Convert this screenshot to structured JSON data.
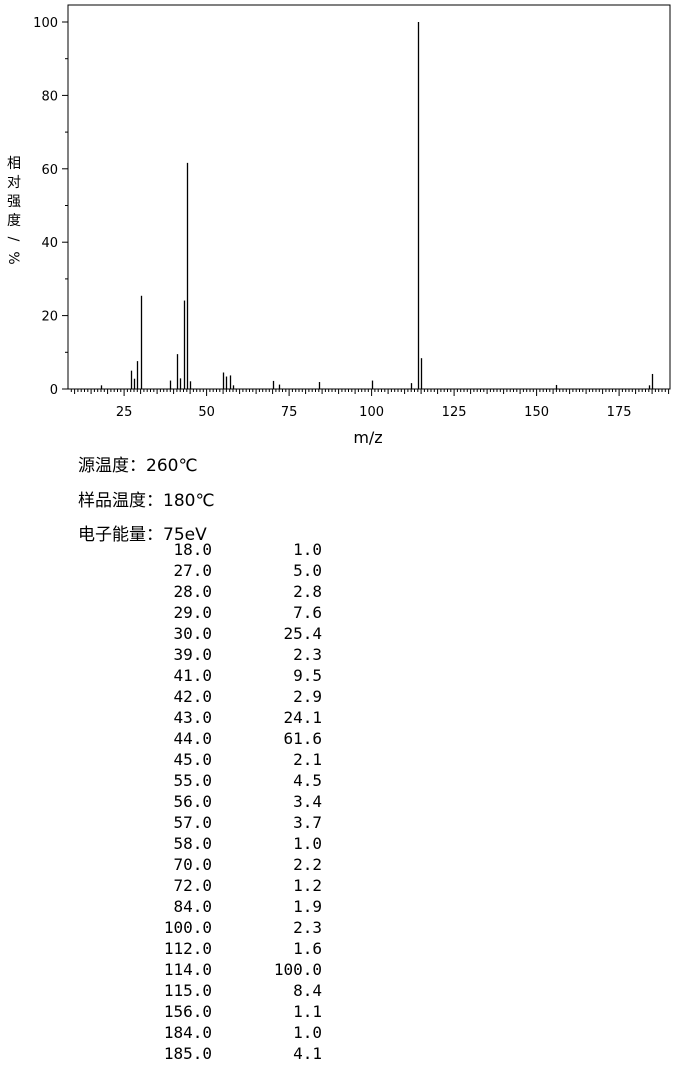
{
  "chart_data": {
    "type": "bar",
    "xlabel": "m/z",
    "ylabel": "相对强度/%",
    "xlim": [
      9,
      190
    ],
    "ylim": [
      0,
      100
    ],
    "x_ticks": [
      25,
      50,
      75,
      100,
      125,
      150,
      175
    ],
    "y_ticks": [
      0,
      20,
      40,
      60,
      80,
      100
    ],
    "grid": false,
    "peaks": [
      {
        "mz": 18.0,
        "intensity": 1.0
      },
      {
        "mz": 27.0,
        "intensity": 5.0
      },
      {
        "mz": 28.0,
        "intensity": 2.8
      },
      {
        "mz": 29.0,
        "intensity": 7.6
      },
      {
        "mz": 30.0,
        "intensity": 25.4
      },
      {
        "mz": 39.0,
        "intensity": 2.3
      },
      {
        "mz": 41.0,
        "intensity": 9.5
      },
      {
        "mz": 42.0,
        "intensity": 2.9
      },
      {
        "mz": 43.0,
        "intensity": 24.1
      },
      {
        "mz": 44.0,
        "intensity": 61.6
      },
      {
        "mz": 45.0,
        "intensity": 2.1
      },
      {
        "mz": 55.0,
        "intensity": 4.5
      },
      {
        "mz": 56.0,
        "intensity": 3.4
      },
      {
        "mz": 57.0,
        "intensity": 3.7
      },
      {
        "mz": 58.0,
        "intensity": 1.0
      },
      {
        "mz": 70.0,
        "intensity": 2.2
      },
      {
        "mz": 72.0,
        "intensity": 1.2
      },
      {
        "mz": 84.0,
        "intensity": 1.9
      },
      {
        "mz": 100.0,
        "intensity": 2.3
      },
      {
        "mz": 112.0,
        "intensity": 1.6
      },
      {
        "mz": 114.0,
        "intensity": 100.0
      },
      {
        "mz": 115.0,
        "intensity": 8.4
      },
      {
        "mz": 156.0,
        "intensity": 1.1
      },
      {
        "mz": 184.0,
        "intensity": 1.0
      },
      {
        "mz": 185.0,
        "intensity": 4.1
      }
    ]
  },
  "info": {
    "source_temp": "源温度：260℃",
    "sample_temp": "样品温度：180℃",
    "electron_energy": "电子能量：75eV"
  },
  "table": [
    {
      "mz": "18.0",
      "intensity": "1.0"
    },
    {
      "mz": "27.0",
      "intensity": "5.0"
    },
    {
      "mz": "28.0",
      "intensity": "2.8"
    },
    {
      "mz": "29.0",
      "intensity": "7.6"
    },
    {
      "mz": "30.0",
      "intensity": "25.4"
    },
    {
      "mz": "39.0",
      "intensity": "2.3"
    },
    {
      "mz": "41.0",
      "intensity": "9.5"
    },
    {
      "mz": "42.0",
      "intensity": "2.9"
    },
    {
      "mz": "43.0",
      "intensity": "24.1"
    },
    {
      "mz": "44.0",
      "intensity": "61.6"
    },
    {
      "mz": "45.0",
      "intensity": "2.1"
    },
    {
      "mz": "55.0",
      "intensity": "4.5"
    },
    {
      "mz": "56.0",
      "intensity": "3.4"
    },
    {
      "mz": "57.0",
      "intensity": "3.7"
    },
    {
      "mz": "58.0",
      "intensity": "1.0"
    },
    {
      "mz": "70.0",
      "intensity": "2.2"
    },
    {
      "mz": "72.0",
      "intensity": "1.2"
    },
    {
      "mz": "84.0",
      "intensity": "1.9"
    },
    {
      "mz": "100.0",
      "intensity": "2.3"
    },
    {
      "mz": "112.0",
      "intensity": "1.6"
    },
    {
      "mz": "114.0",
      "intensity": "100.0"
    },
    {
      "mz": "115.0",
      "intensity": "8.4"
    },
    {
      "mz": "156.0",
      "intensity": "1.1"
    },
    {
      "mz": "184.0",
      "intensity": "1.0"
    },
    {
      "mz": "185.0",
      "intensity": "4.1"
    }
  ]
}
